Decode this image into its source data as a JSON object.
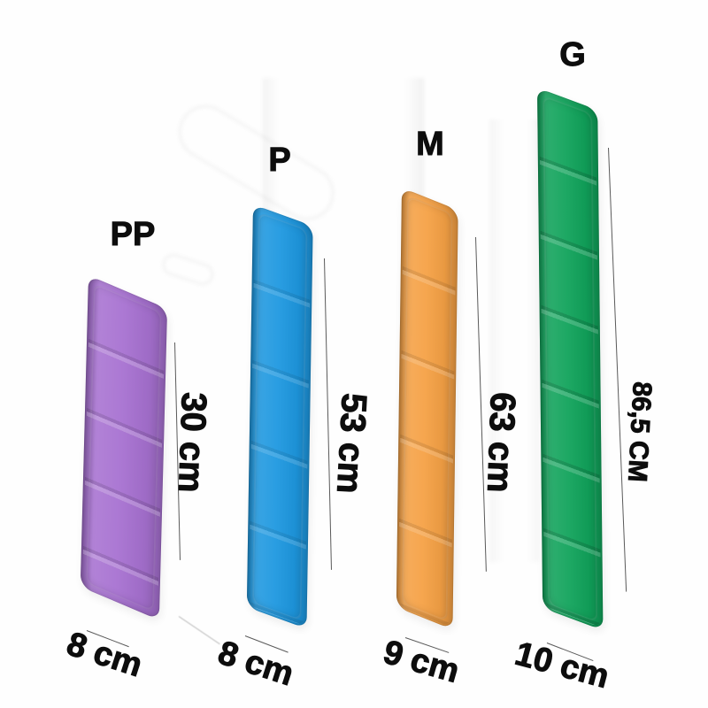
{
  "figure": {
    "items": [
      {
        "size_label": "PP",
        "length_label": "30 cm",
        "width_label": "8 cm",
        "color": "#a771d1",
        "color_name": "purple"
      },
      {
        "size_label": "P",
        "length_label": "53 cm",
        "width_label": "8 cm",
        "color": "#1e98e0",
        "color_name": "blue"
      },
      {
        "size_label": "M",
        "length_label": "63 cm",
        "width_label": "9 cm",
        "color": "#f5a145",
        "color_name": "orange"
      },
      {
        "size_label": "G",
        "length_label": "86,5 CM",
        "width_label": "10 cm",
        "color": "#11a35b",
        "color_name": "green"
      }
    ],
    "line_color": "#5a5a5a",
    "text_color": "#0d0d0d"
  }
}
